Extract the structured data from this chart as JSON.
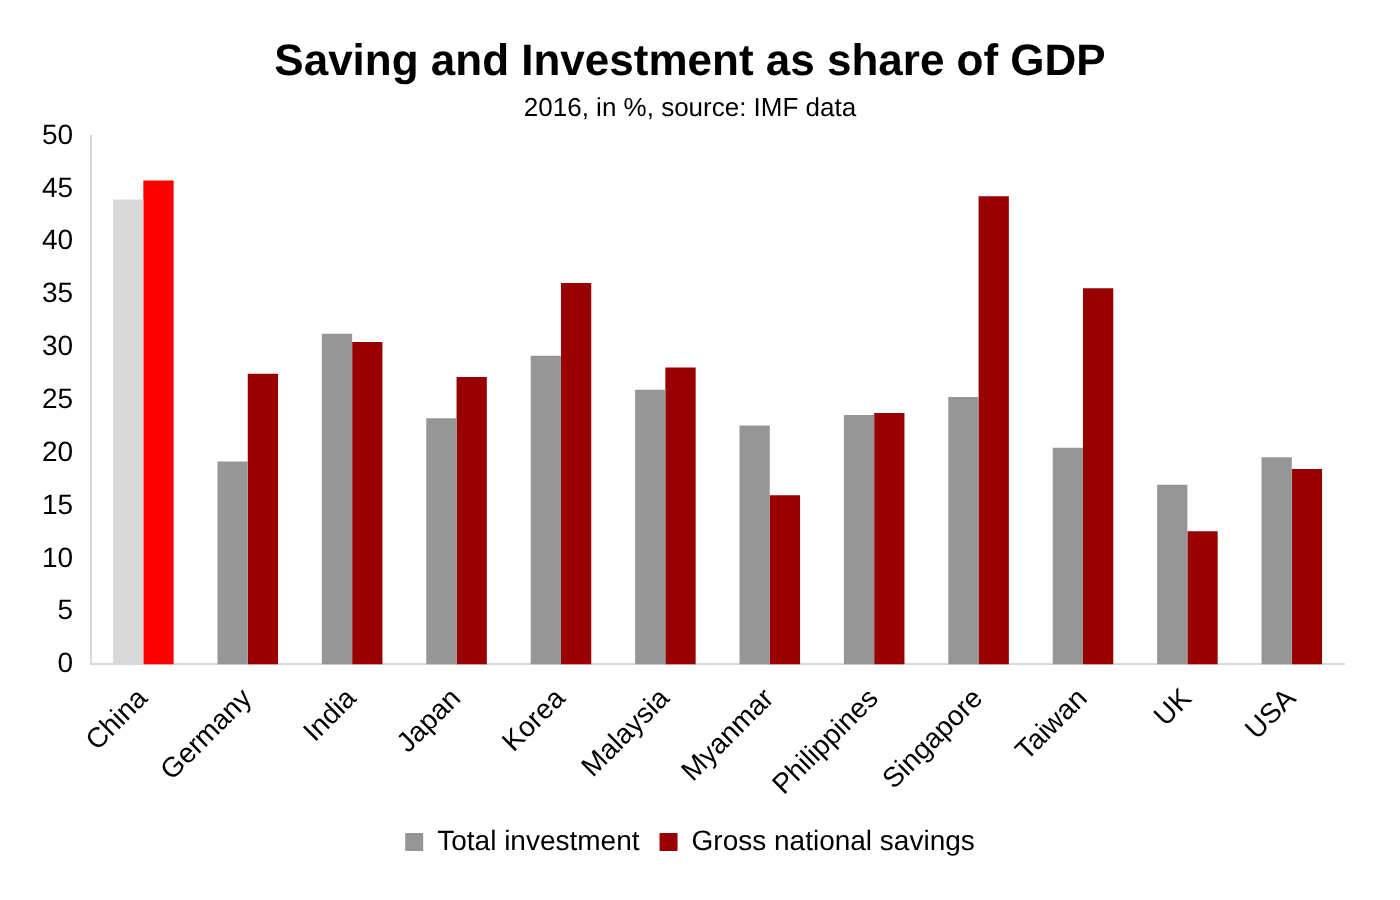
{
  "chart_data": {
    "type": "bar",
    "title": "Saving and Investment as share of GDP",
    "subtitle": "2016, in %, source: IMF data",
    "categories": [
      "China",
      "Germany",
      "India",
      "Japan",
      "Korea",
      "Malaysia",
      "Myanmar",
      "Philippines",
      "Singapore",
      "Taiwan",
      "UK",
      "USA"
    ],
    "series": [
      {
        "name": "Total investment",
        "color": "#969696",
        "colors": [
          "#d9d9d9",
          "#969696",
          "#969696",
          "#969696",
          "#969696",
          "#969696",
          "#969696",
          "#969696",
          "#969696",
          "#969696",
          "#969696",
          "#969696"
        ],
        "values": [
          44.0,
          19.2,
          31.3,
          23.3,
          29.2,
          26.0,
          22.6,
          23.6,
          25.3,
          20.5,
          17.0,
          19.6
        ]
      },
      {
        "name": "Gross national savings",
        "color": "#990000",
        "colors": [
          "#ff0000",
          "#990000",
          "#990000",
          "#990000",
          "#990000",
          "#990000",
          "#990000",
          "#990000",
          "#990000",
          "#990000",
          "#990000",
          "#990000"
        ],
        "values": [
          45.8,
          27.5,
          30.5,
          27.2,
          36.1,
          28.1,
          16.0,
          23.8,
          44.3,
          35.6,
          12.6,
          18.5
        ]
      }
    ],
    "ylim": [
      0,
      50
    ],
    "yticks": [
      0,
      5,
      10,
      15,
      20,
      25,
      30,
      35,
      40,
      45,
      50
    ],
    "grid": false,
    "legend": "bottom"
  }
}
